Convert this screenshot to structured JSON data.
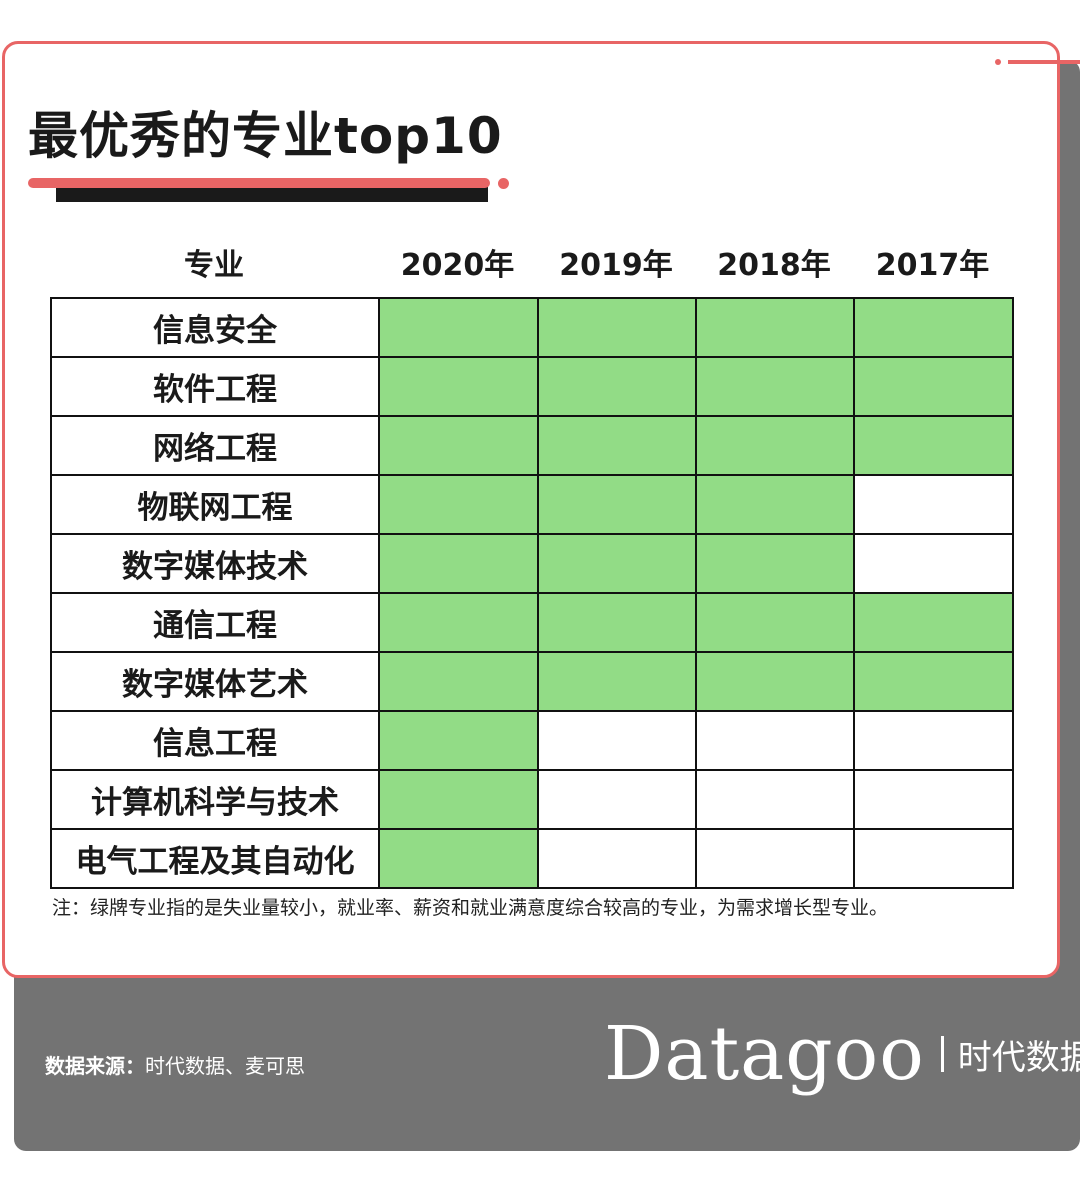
{
  "title": "最优秀的专业top10",
  "colors": {
    "accent": "#e86565",
    "highlight_green": "#92dc86",
    "footer_gray": "#737373",
    "border": "#111111"
  },
  "chart_data": {
    "type": "table",
    "title": "最优秀的专业top10",
    "columns": [
      "专业",
      "2020年",
      "2019年",
      "2018年",
      "2017年"
    ],
    "rows": [
      {
        "major": "信息安全",
        "green": [
          true,
          true,
          true,
          true
        ]
      },
      {
        "major": "软件工程",
        "green": [
          true,
          true,
          true,
          true
        ]
      },
      {
        "major": "网络工程",
        "green": [
          true,
          true,
          true,
          true
        ]
      },
      {
        "major": "物联网工程",
        "green": [
          true,
          true,
          true,
          false
        ]
      },
      {
        "major": "数字媒体技术",
        "green": [
          true,
          true,
          true,
          false
        ]
      },
      {
        "major": "通信工程",
        "green": [
          true,
          true,
          true,
          true
        ]
      },
      {
        "major": "数字媒体艺术",
        "green": [
          true,
          true,
          true,
          true
        ]
      },
      {
        "major": "信息工程",
        "green": [
          true,
          false,
          false,
          false
        ]
      },
      {
        "major": "计算机科学与技术",
        "green": [
          true,
          false,
          false,
          false
        ]
      },
      {
        "major": "电气工程及其自动化",
        "green": [
          true,
          false,
          false,
          false
        ]
      }
    ]
  },
  "note": "注：绿牌专业指的是失业量较小，就业率、薪资和就业满意度综合较高的专业，为需求增长型专业。",
  "footer": {
    "source_label": "数据来源：",
    "source_text": "时代数据、麦可思",
    "brand_logo": "Datagoo",
    "brand_cn": "时代数据"
  }
}
